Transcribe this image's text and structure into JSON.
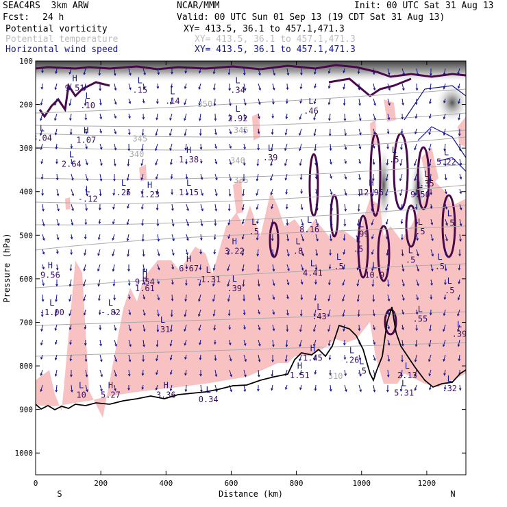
{
  "header": {
    "model": "SEAC4RS  3km ARW",
    "org": "NCAR/MMM",
    "init": "Init: 00 UTC Sat 31 Aug 13",
    "fcst_label": "Fcst:",
    "fcst_value": "24 h",
    "valid": "Valid: 00 UTC Sun 01 Sep 13 (19 CDT Sat 31 Aug 13)"
  },
  "fields": [
    {
      "name": "Potential vorticity",
      "xy": "XY= 413.5, 36.1 to 457.1,471.3",
      "color": "#000000"
    },
    {
      "name": "Potential temperature",
      "xy": "XY= 413.5, 36.1 to 457.1,471.3",
      "color": "#bdbdbd"
    },
    {
      "name": "Horizontal wind speed",
      "xy": "XY= 413.5, 36.1 to 457.1,471.3",
      "color": "#1a1a8c"
    }
  ],
  "colors": {
    "pv_fill": "#f8c2c2",
    "pv_contour": "#4a0a4a",
    "theta": "#aaaaaa",
    "wind": "#14148c",
    "terrain": "#000000"
  },
  "chart_data": {
    "type": "cross-section",
    "xlabel": "Distance (km)",
    "ylabel": "Pressure (hPa)",
    "xlim": [
      0,
      1320
    ],
    "ylim": [
      1050,
      100
    ],
    "x_ticks": [
      0,
      200,
      400,
      600,
      800,
      1000,
      1200
    ],
    "y_ticks": [
      100,
      200,
      300,
      400,
      500,
      600,
      700,
      800,
      900,
      1000
    ],
    "end_labels": {
      "left": "S",
      "right": "N"
    },
    "theta_contours": [
      {
        "label": "350",
        "x": 520,
        "p": 205
      },
      {
        "label": "345",
        "x": 320,
        "p": 285
      },
      {
        "label": "345",
        "x": 630,
        "p": 265
      },
      {
        "label": "340",
        "x": 310,
        "p": 320
      },
      {
        "label": "340",
        "x": 620,
        "p": 335
      },
      {
        "label": "335",
        "x": 630,
        "p": 380
      },
      {
        "label": "310",
        "x": 920,
        "p": 830
      }
    ],
    "extrema": [
      {
        "t": "H",
        "x": 120,
        "p": 165,
        "v": "9.51"
      },
      {
        "t": "L",
        "x": 160,
        "p": 205,
        "v": ".10"
      },
      {
        "t": "L",
        "x": 320,
        "p": 170,
        "v": ".15"
      },
      {
        "t": "L",
        "x": 420,
        "p": 195,
        "v": ".14"
      },
      {
        "t": "L",
        "x": 620,
        "p": 170,
        "v": ".34"
      },
      {
        "t": "L",
        "x": 620,
        "p": 235,
        "v": "2.92"
      },
      {
        "t": "L",
        "x": 845,
        "p": 218,
        "v": ".46"
      },
      {
        "t": "L",
        "x": 20,
        "p": 280,
        "v": "3.04"
      },
      {
        "t": "H",
        "x": 155,
        "p": 285,
        "v": "1.07"
      },
      {
        "t": "L",
        "x": 110,
        "p": 340,
        "v": "2.64"
      },
      {
        "t": "H",
        "x": 470,
        "p": 330,
        "v": "1.38"
      },
      {
        "t": "L",
        "x": 720,
        "p": 325,
        "v": ".39"
      },
      {
        "t": "L",
        "x": 1100,
        "p": 330,
        "v": ".5"
      },
      {
        "t": "L",
        "x": 1260,
        "p": 335,
        "v": "5.22"
      },
      {
        "t": "L",
        "x": 160,
        "p": 420,
        "v": "-.12"
      },
      {
        "t": "L",
        "x": 270,
        "p": 405,
        "v": ".25"
      },
      {
        "t": "H",
        "x": 350,
        "p": 410,
        "v": "1.23"
      },
      {
        "t": "L",
        "x": 470,
        "p": 405,
        "v": "1.15"
      },
      {
        "t": "H",
        "x": 1030,
        "p": 405,
        "v": "12.96"
      },
      {
        "t": "L",
        "x": 1180,
        "p": 410,
        "v": "9.50"
      },
      {
        "t": "L",
        "x": 1200,
        "p": 385,
        "v": ".35"
      },
      {
        "t": "L",
        "x": 840,
        "p": 490,
        "v": "8.16"
      },
      {
        "t": "L",
        "x": 670,
        "p": 495,
        "v": ".5"
      },
      {
        "t": "H",
        "x": 610,
        "p": 540,
        "v": "3.22"
      },
      {
        "t": "L",
        "x": 805,
        "p": 540,
        "v": ".8"
      },
      {
        "t": "L",
        "x": 1000,
        "p": 500,
        "v": ".99"
      },
      {
        "t": "L",
        "x": 1180,
        "p": 495,
        "v": ".5"
      },
      {
        "t": "L",
        "x": 1270,
        "p": 475,
        "v": ".5"
      },
      {
        "t": "L",
        "x": 990,
        "p": 535,
        "v": ".5"
      },
      {
        "t": "H",
        "x": 45,
        "p": 595,
        "v": "9.56"
      },
      {
        "t": "H",
        "x": 470,
        "p": 580,
        "v": "6.67"
      },
      {
        "t": "L",
        "x": 850,
        "p": 590,
        "v": "4.41"
      },
      {
        "t": "L",
        "x": 930,
        "p": 575,
        "v": ".5"
      },
      {
        "t": "L",
        "x": 1040,
        "p": 595,
        "v": "10.9"
      },
      {
        "t": "L",
        "x": 1150,
        "p": 560,
        "v": ".5"
      },
      {
        "t": "L",
        "x": 1240,
        "p": 575,
        "v": ".5"
      },
      {
        "t": "H",
        "x": 335,
        "p": 610,
        "v": "9.54"
      },
      {
        "t": "H",
        "x": 335,
        "p": 625,
        "v": "1.61"
      },
      {
        "t": "L",
        "x": 530,
        "p": 605,
        "v": "-1.31"
      },
      {
        "t": "L",
        "x": 610,
        "p": 625,
        "v": ".39"
      },
      {
        "t": "L",
        "x": 50,
        "p": 680,
        "v": "-1.00"
      },
      {
        "t": "L",
        "x": 230,
        "p": 680,
        "v": "-.82"
      },
      {
        "t": "L",
        "x": 870,
        "p": 690,
        "v": ".43"
      },
      {
        "t": "L",
        "x": 1270,
        "p": 630,
        "v": ".5"
      },
      {
        "t": "L",
        "x": 390,
        "p": 720,
        "v": ".31"
      },
      {
        "t": "L",
        "x": 1180,
        "p": 695,
        "v": ".55"
      },
      {
        "t": "L",
        "x": 1300,
        "p": 730,
        "v": ".39"
      },
      {
        "t": "H",
        "x": 850,
        "p": 785,
        "v": "1.45"
      },
      {
        "t": "L",
        "x": 970,
        "p": 790,
        "v": ".26"
      },
      {
        "t": "H",
        "x": 810,
        "p": 825,
        "v": "1.51"
      },
      {
        "t": "L",
        "x": 1000,
        "p": 815,
        "v": ".5"
      },
      {
        "t": "L",
        "x": 1140,
        "p": 825,
        "v": "2.13"
      },
      {
        "t": "L",
        "x": 140,
        "p": 870,
        "v": "10"
      },
      {
        "t": "H",
        "x": 230,
        "p": 870,
        "v": "5.27"
      },
      {
        "t": "H",
        "x": 400,
        "p": 870,
        "v": "3.36"
      },
      {
        "t": "L",
        "x": 530,
        "p": 880,
        "v": "0.34"
      },
      {
        "t": "L",
        "x": 1130,
        "p": 865,
        "v": "5.31"
      },
      {
        "t": "L",
        "x": 1270,
        "p": 855,
        "v": ".32"
      }
    ]
  }
}
